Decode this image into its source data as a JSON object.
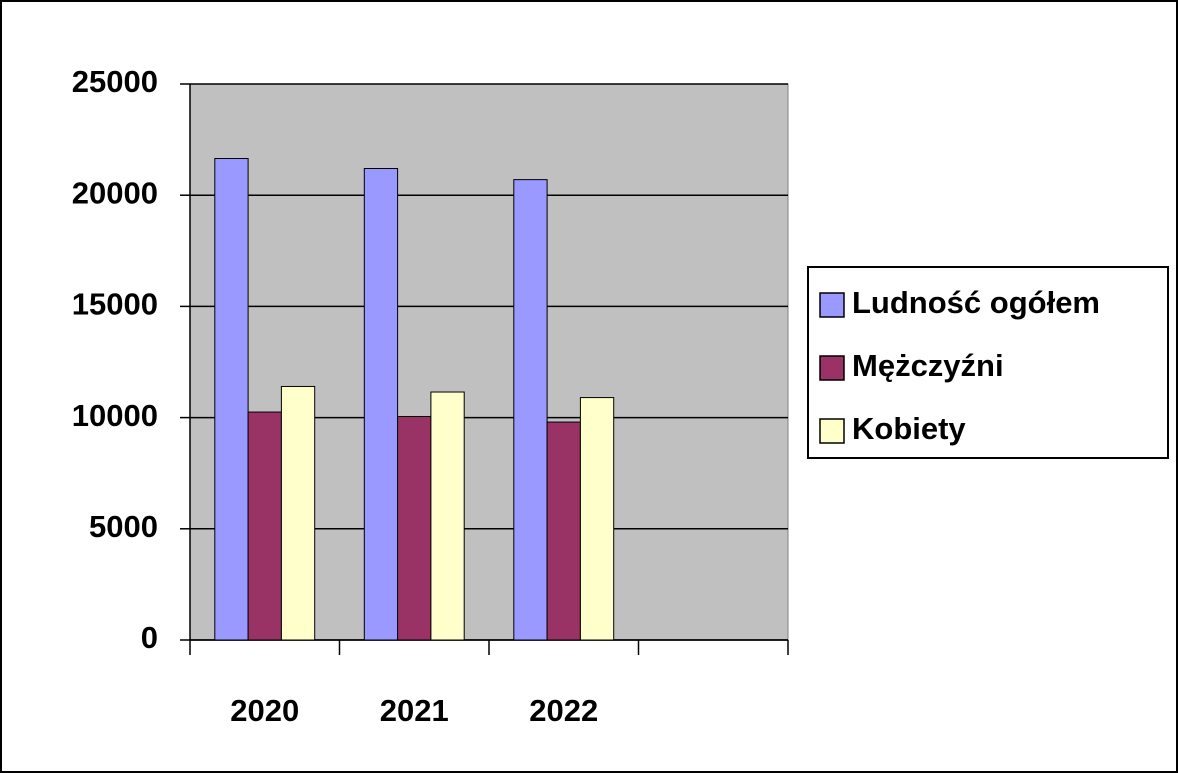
{
  "chart_data": {
    "type": "bar",
    "categories": [
      "2020",
      "2021",
      "2022",
      null
    ],
    "series": [
      {
        "name": "Ludność ogółem",
        "color": "#9999ff",
        "values": [
          21650,
          21200,
          20700,
          null
        ]
      },
      {
        "name": "Mężczyźni",
        "color": "#993366",
        "values": [
          10250,
          10050,
          9800,
          null
        ]
      },
      {
        "name": "Kobiety",
        "color": "#ffffcc",
        "values": [
          11400,
          11150,
          10900,
          null
        ]
      }
    ],
    "ylim": [
      0,
      25000
    ],
    "yticks": [
      0,
      5000,
      10000,
      15000,
      20000,
      25000
    ],
    "grid": true,
    "legend": "right",
    "plot_background": "#c0c0c0"
  }
}
